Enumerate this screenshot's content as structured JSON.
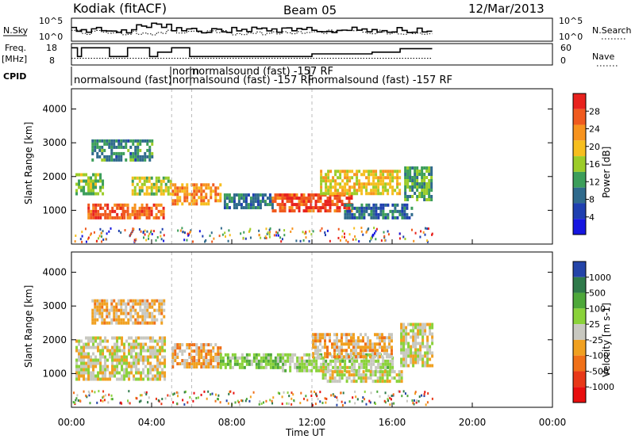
{
  "header": {
    "station": "Kodiak (fitACF)",
    "beam": "Beam 05",
    "date": "12/Mar/2013"
  },
  "top_panels": {
    "nsky_label": "N.Sky",
    "nsky_ticks": [
      "10^5",
      "10^0"
    ],
    "nsearch_ticks": [
      "10^5",
      "10^0"
    ],
    "nsearch_label": "N.Search",
    "freq_label_line1": "Freq.",
    "freq_label_line2": "[MHz]",
    "freq_ticks": [
      "18",
      "8"
    ],
    "nave_ticks": [
      "60",
      "0"
    ],
    "nave_label": "Nave",
    "cpid_label": "CPID",
    "cpid_texts": [
      "normalsound (fast)",
      "norm",
      "normalsound (fast) -157 RF",
      "normalsound (fast) -157 RF",
      "normalsound (fast) -157 RF"
    ]
  },
  "panels": {
    "y_label": "Slant Range [km]",
    "y_ticks": [
      "4000",
      "3000",
      "2000",
      "1000"
    ],
    "x_ticks": [
      "00:00",
      "04:00",
      "08:00",
      "12:00",
      "16:00",
      "20:00",
      "00:00"
    ],
    "x_label": "Time UT"
  },
  "colorbars": {
    "power": {
      "label": "Power [dB]",
      "ticks": [
        "28",
        "24",
        "20",
        "16",
        "12",
        "8",
        "4"
      ],
      "colors": [
        "#e8221e",
        "#f05a1e",
        "#f7931e",
        "#f6be1e",
        "#9ccc28",
        "#3c9e5a",
        "#2f6a8c",
        "#1f3fb0",
        "#1616e0"
      ]
    },
    "velocity": {
      "label": "Velocity [m s-1]",
      "ticks": [
        "1000",
        "500",
        "100",
        "25",
        "-25",
        "-100",
        "-500",
        "-1000"
      ],
      "colors": [
        "#2444a8",
        "#2f7a4a",
        "#4ea83a",
        "#8ad23a",
        "#c8c8c0",
        "#f0a020",
        "#f07018",
        "#e83818",
        "#e80e0e"
      ]
    }
  },
  "chart_data": [
    {
      "type": "heatmap",
      "title": "Power",
      "xlabel": "Time UT",
      "ylabel": "Slant Range [km]",
      "xlim": [
        0,
        24
      ],
      "ylim": [
        0,
        4600
      ],
      "data_end_hour": 18,
      "colorbar_range": [
        0,
        30
      ],
      "bands": [
        {
          "t0": 0.2,
          "t1": 1.6,
          "r0": 1500,
          "r1": 2100,
          "v": 14
        },
        {
          "t0": 0.8,
          "t1": 2.6,
          "r0": 800,
          "r1": 1200,
          "v": 26
        },
        {
          "t0": 1.0,
          "t1": 4.0,
          "r0": 2500,
          "r1": 3100,
          "v": 10
        },
        {
          "t0": 2.4,
          "t1": 4.6,
          "r0": 800,
          "r1": 1200,
          "v": 24
        },
        {
          "t0": 3.0,
          "t1": 5.0,
          "r0": 1500,
          "r1": 2000,
          "v": 16
        },
        {
          "t0": 5.0,
          "t1": 7.4,
          "r0": 1200,
          "r1": 1800,
          "v": 22
        },
        {
          "t0": 7.6,
          "t1": 10.0,
          "r0": 1100,
          "r1": 1500,
          "v": 9
        },
        {
          "t0": 10.0,
          "t1": 14.0,
          "r0": 1000,
          "r1": 1500,
          "v": 26
        },
        {
          "t0": 12.4,
          "t1": 16.4,
          "r0": 1500,
          "r1": 2200,
          "v": 18
        },
        {
          "t0": 13.6,
          "t1": 17.0,
          "r0": 800,
          "r1": 1200,
          "v": 8
        },
        {
          "t0": 16.6,
          "t1": 18.0,
          "r0": 1300,
          "r1": 2300,
          "v": 12
        }
      ]
    },
    {
      "type": "heatmap",
      "title": "Velocity",
      "xlabel": "Time UT",
      "ylabel": "Slant Range [km]",
      "xlim": [
        0,
        24
      ],
      "ylim": [
        0,
        4600
      ],
      "data_end_hour": 18,
      "colorbar_range": [
        -1000,
        1000
      ],
      "bands": [
        {
          "t0": 0.2,
          "t1": 4.6,
          "r0": 800,
          "r1": 2100,
          "v": 0
        },
        {
          "t0": 1.0,
          "t1": 4.6,
          "r0": 2500,
          "r1": 3200,
          "v": -150
        },
        {
          "t0": 5.0,
          "t1": 7.4,
          "r0": 1200,
          "r1": 1900,
          "v": -200
        },
        {
          "t0": 7.4,
          "t1": 10.5,
          "r0": 1200,
          "r1": 1600,
          "v": 300
        },
        {
          "t0": 10.5,
          "t1": 16.0,
          "r0": 1100,
          "r1": 1600,
          "v": 120
        },
        {
          "t0": 12.0,
          "t1": 16.0,
          "r0": 1500,
          "r1": 2200,
          "v": -180
        },
        {
          "t0": 12.5,
          "t1": 16.5,
          "r0": 800,
          "r1": 1100,
          "v": 0
        },
        {
          "t0": 16.4,
          "t1": 18.0,
          "r0": 1200,
          "r1": 2500,
          "v": 0
        }
      ]
    }
  ]
}
